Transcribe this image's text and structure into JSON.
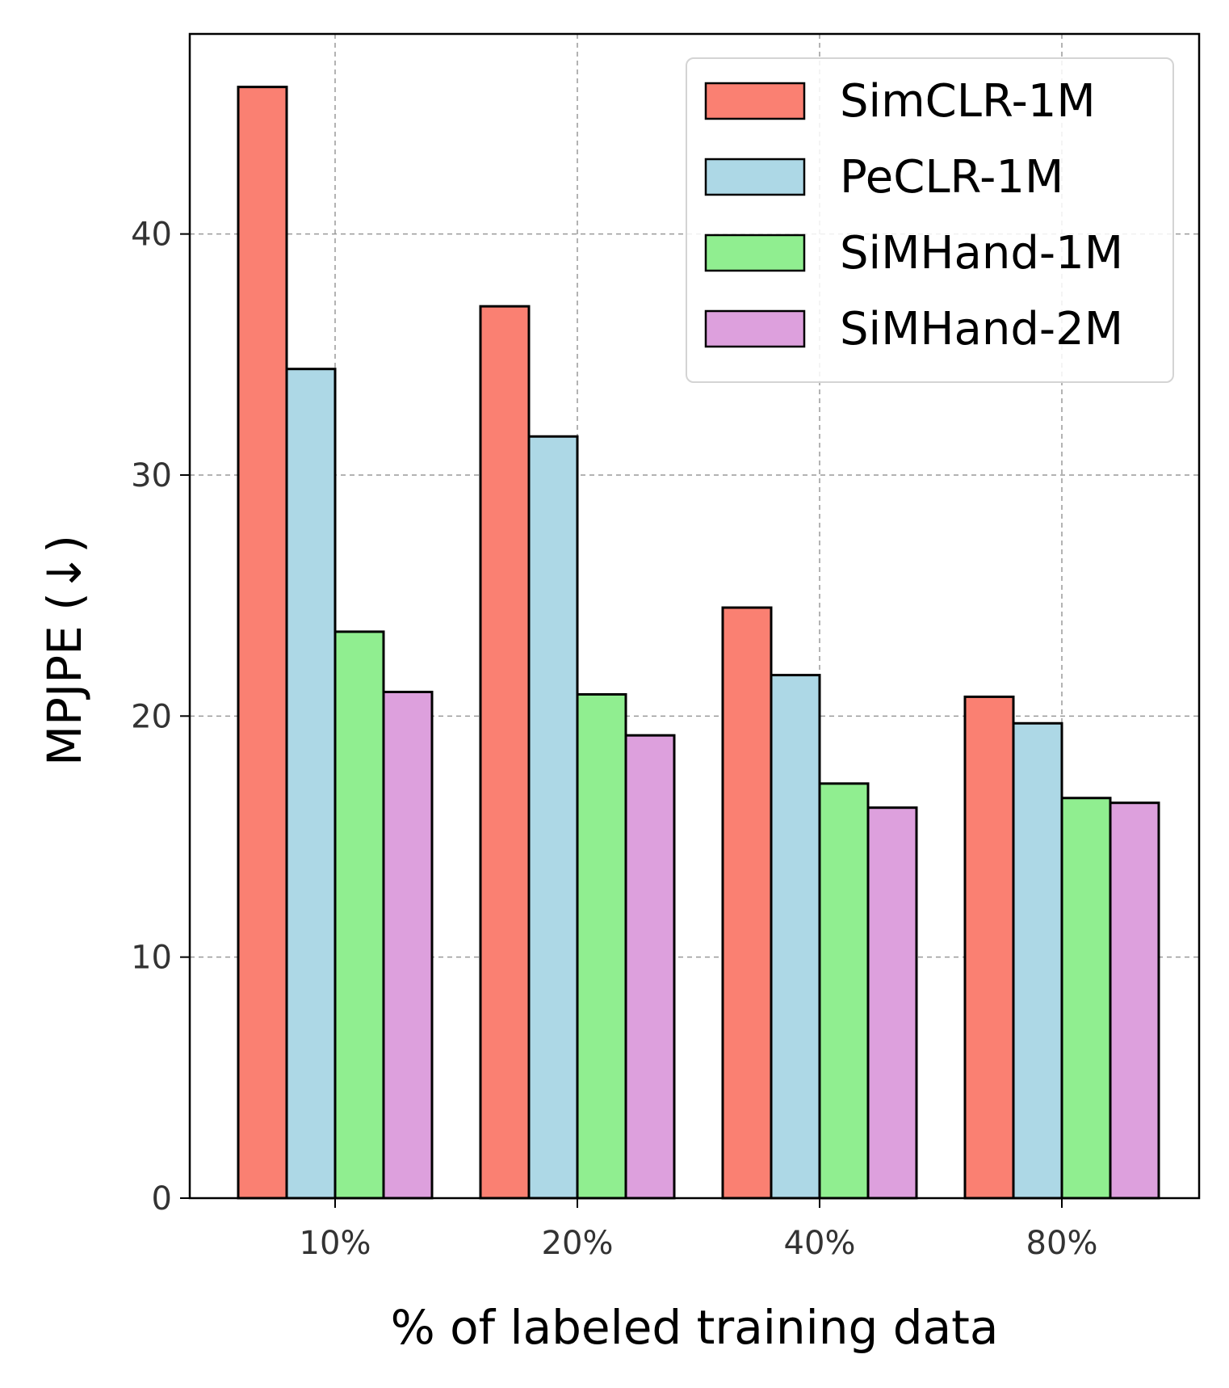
{
  "chart_data": {
    "type": "bar",
    "title": "",
    "xlabel": "% of labeled training data",
    "ylabel": "MPJPE (↓)",
    "categories": [
      "10%",
      "20%",
      "40%",
      "80%"
    ],
    "series": [
      {
        "name": "SimCLR-1M",
        "color": "#fa8072",
        "values": [
          46.1,
          37.0,
          24.5,
          20.8
        ]
      },
      {
        "name": "PeCLR-1M",
        "color": "#add8e6",
        "values": [
          34.4,
          31.6,
          21.7,
          19.7
        ]
      },
      {
        "name": "SiMHand-1M",
        "color": "#90ee90",
        "values": [
          23.5,
          20.9,
          17.2,
          16.6
        ]
      },
      {
        "name": "SiMHand-2M",
        "color": "#dda0dd",
        "values": [
          21.0,
          19.2,
          16.2,
          16.4
        ]
      }
    ],
    "yticks": [
      0,
      10,
      20,
      30,
      40
    ],
    "ylim": [
      0,
      48.3
    ],
    "grid": true,
    "legend": "top-right"
  }
}
